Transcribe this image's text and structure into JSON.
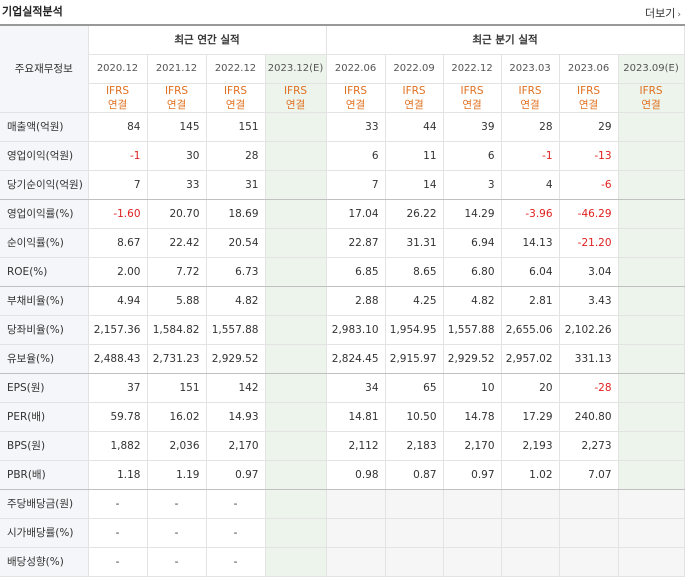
{
  "header": {
    "title": "기업실적분석",
    "more_label": "더보기"
  },
  "table": {
    "corner_label": "주요재무정보",
    "annual_group": "최근 연간 실적",
    "quarter_group": "최근 분기 실적",
    "annual_dates": [
      "2020.12",
      "2021.12",
      "2022.12",
      "2023.12(E)"
    ],
    "quarter_dates": [
      "2022.06",
      "2022.09",
      "2022.12",
      "2023.03",
      "2023.06",
      "2023.09(E)"
    ],
    "ifrs_top": "IFRS",
    "ifrs_bottom": "연결",
    "rows": [
      {
        "label": "매출액(억원)",
        "annual": [
          "84",
          "145",
          "151",
          ""
        ],
        "quarter": [
          "33",
          "44",
          "39",
          "28",
          "29",
          ""
        ]
      },
      {
        "label": "영업이익(억원)",
        "annual": [
          "-1",
          "30",
          "28",
          ""
        ],
        "quarter": [
          "6",
          "11",
          "6",
          "-1",
          "-13",
          ""
        ]
      },
      {
        "label": "당기순이익(억원)",
        "annual": [
          "7",
          "33",
          "31",
          ""
        ],
        "quarter": [
          "7",
          "14",
          "3",
          "4",
          "-6",
          ""
        ]
      },
      {
        "label": "영업이익률(%)",
        "annual": [
          "-1.60",
          "20.70",
          "18.69",
          ""
        ],
        "quarter": [
          "17.04",
          "26.22",
          "14.29",
          "-3.96",
          "-46.29",
          ""
        ]
      },
      {
        "label": "순이익률(%)",
        "annual": [
          "8.67",
          "22.42",
          "20.54",
          ""
        ],
        "quarter": [
          "22.87",
          "31.31",
          "6.94",
          "14.13",
          "-21.20",
          ""
        ]
      },
      {
        "label": "ROE(%)",
        "annual": [
          "2.00",
          "7.72",
          "6.73",
          ""
        ],
        "quarter": [
          "6.85",
          "8.65",
          "6.80",
          "6.04",
          "3.04",
          ""
        ]
      },
      {
        "label": "부채비율(%)",
        "annual": [
          "4.94",
          "5.88",
          "4.82",
          ""
        ],
        "quarter": [
          "2.88",
          "4.25",
          "4.82",
          "2.81",
          "3.43",
          ""
        ]
      },
      {
        "label": "당좌비율(%)",
        "annual": [
          "2,157.36",
          "1,584.82",
          "1,557.88",
          ""
        ],
        "quarter": [
          "2,983.10",
          "1,954.95",
          "1,557.88",
          "2,655.06",
          "2,102.26",
          ""
        ]
      },
      {
        "label": "유보율(%)",
        "annual": [
          "2,488.43",
          "2,731.23",
          "2,929.52",
          ""
        ],
        "quarter": [
          "2,824.45",
          "2,915.97",
          "2,929.52",
          "2,957.02",
          "331.13",
          ""
        ]
      },
      {
        "label": "EPS(원)",
        "annual": [
          "37",
          "151",
          "142",
          ""
        ],
        "quarter": [
          "34",
          "65",
          "10",
          "20",
          "-28",
          ""
        ]
      },
      {
        "label": "PER(배)",
        "annual": [
          "59.78",
          "16.02",
          "14.93",
          ""
        ],
        "quarter": [
          "14.81",
          "10.50",
          "14.78",
          "17.29",
          "240.80",
          ""
        ]
      },
      {
        "label": "BPS(원)",
        "annual": [
          "1,882",
          "2,036",
          "2,170",
          ""
        ],
        "quarter": [
          "2,112",
          "2,183",
          "2,170",
          "2,193",
          "2,273",
          ""
        ]
      },
      {
        "label": "PBR(배)",
        "annual": [
          "1.18",
          "1.19",
          "0.97",
          ""
        ],
        "quarter": [
          "0.98",
          "0.87",
          "0.97",
          "1.02",
          "7.07",
          ""
        ]
      },
      {
        "label": "주당배당금(원)",
        "annual": [
          "-",
          "-",
          "-",
          ""
        ],
        "quarter": [
          "",
          "",
          "",
          "",
          "",
          ""
        ]
      },
      {
        "label": "시가배당률(%)",
        "annual": [
          "-",
          "-",
          "-",
          ""
        ],
        "quarter": [
          "",
          "",
          "",
          "",
          "",
          ""
        ]
      },
      {
        "label": "배당성향(%)",
        "annual": [
          "-",
          "-",
          "-",
          ""
        ],
        "quarter": [
          "",
          "",
          "",
          "",
          "",
          ""
        ]
      }
    ]
  },
  "colors": {
    "negative": "#e02020",
    "ifrs": "#e07020",
    "estimate_bg": "#edf4ec",
    "label_bg": "#f4f6f9"
  }
}
